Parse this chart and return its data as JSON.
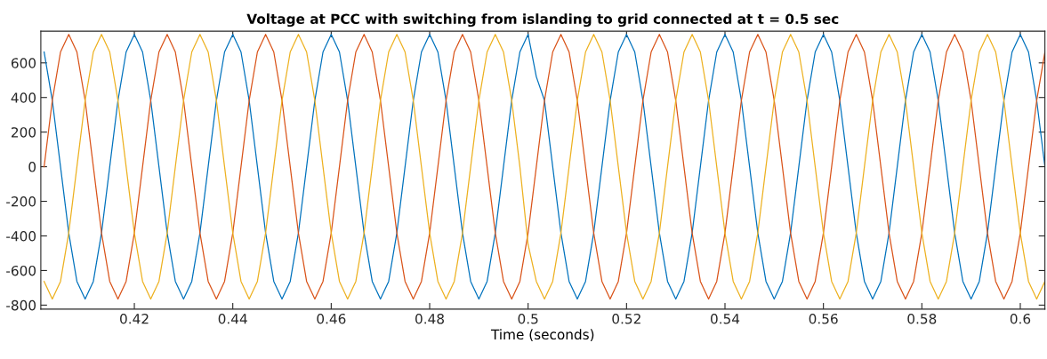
{
  "chart_data": {
    "type": "line",
    "title": "Voltage at PCC with switching from islanding to grid connected at t = 0.5 sec",
    "xlabel": "Time (seconds)",
    "x": [
      0.40167,
      0.40333,
      0.405,
      0.40667,
      0.40833,
      0.41,
      0.41167,
      0.41333,
      0.415,
      0.41667,
      0.41833,
      0.42,
      0.42167,
      0.42333,
      0.425,
      0.42667,
      0.42833,
      0.43,
      0.43167,
      0.43333,
      0.435,
      0.43667,
      0.43833,
      0.44,
      0.44167,
      0.44333,
      0.445,
      0.44667,
      0.44833,
      0.45,
      0.45167,
      0.45333,
      0.455,
      0.45667,
      0.45833,
      0.46,
      0.46167,
      0.46333,
      0.465,
      0.46667,
      0.46833,
      0.47,
      0.47167,
      0.47333,
      0.475,
      0.47667,
      0.47833,
      0.48,
      0.48167,
      0.48333,
      0.485,
      0.48667,
      0.48833,
      0.49,
      0.49167,
      0.49333,
      0.495,
      0.49667,
      0.49833,
      0.5,
      0.50167,
      0.50333,
      0.505,
      0.50667,
      0.50833,
      0.51,
      0.51167,
      0.51333,
      0.515,
      0.51667,
      0.51833,
      0.52,
      0.52167,
      0.52333,
      0.525,
      0.52667,
      0.52833,
      0.53,
      0.53167,
      0.53333,
      0.535,
      0.53667,
      0.53833,
      0.54,
      0.54167,
      0.54333,
      0.545,
      0.54667,
      0.54833,
      0.55,
      0.55167,
      0.55333,
      0.555,
      0.55667,
      0.55833,
      0.56,
      0.56167,
      0.56333,
      0.565,
      0.56667,
      0.56833,
      0.57,
      0.57167,
      0.57333,
      0.575,
      0.57667,
      0.57833,
      0.58,
      0.58167,
      0.58333,
      0.585,
      0.58667,
      0.58833,
      0.59,
      0.59167,
      0.59333,
      0.595,
      0.59667,
      0.59833,
      0.6,
      0.60167,
      0.60333,
      0.605
    ],
    "series": [
      {
        "color": "#0072bd",
        "values": [
          663,
          383,
          0,
          -383,
          -663,
          -765,
          -663,
          -383,
          0,
          383,
          663,
          765,
          663,
          383,
          0,
          -383,
          -663,
          -765,
          -663,
          -383,
          0,
          383,
          663,
          765,
          663,
          383,
          0,
          -383,
          -663,
          -765,
          -663,
          -383,
          0,
          383,
          663,
          765,
          663,
          383,
          0,
          -383,
          -663,
          -765,
          -663,
          -383,
          0,
          383,
          663,
          765,
          663,
          383,
          0,
          -383,
          -663,
          -765,
          -663,
          -383,
          0,
          383,
          663,
          765,
          520,
          383,
          0,
          -383,
          -663,
          -765,
          -663,
          -383,
          0,
          383,
          663,
          765,
          663,
          383,
          0,
          -383,
          -663,
          -765,
          -663,
          -383,
          0,
          383,
          663,
          765,
          663,
          383,
          0,
          -383,
          -663,
          -765,
          -663,
          -383,
          0,
          383,
          663,
          765,
          663,
          383,
          0,
          -383,
          -663,
          -765,
          -663,
          -383,
          0,
          383,
          663,
          765,
          663,
          383,
          0,
          -383,
          -663,
          -765,
          -663,
          -383,
          0,
          383,
          663,
          765,
          663,
          383,
          0
        ]
      },
      {
        "color": "#d95319",
        "values": [
          0,
          383,
          663,
          765,
          663,
          383,
          0,
          -383,
          -663,
          -765,
          -663,
          -383,
          0,
          383,
          663,
          765,
          663,
          383,
          0,
          -383,
          -663,
          -765,
          -663,
          -383,
          0,
          383,
          663,
          765,
          663,
          383,
          0,
          -383,
          -663,
          -765,
          -663,
          -383,
          0,
          383,
          663,
          765,
          663,
          383,
          0,
          -383,
          -663,
          -765,
          -663,
          -383,
          0,
          383,
          663,
          765,
          663,
          383,
          0,
          -383,
          -663,
          -765,
          -663,
          -383,
          0,
          383,
          663,
          765,
          663,
          383,
          0,
          -383,
          -663,
          -765,
          -663,
          -383,
          0,
          383,
          663,
          765,
          663,
          383,
          0,
          -383,
          -663,
          -765,
          -663,
          -383,
          0,
          383,
          663,
          765,
          663,
          383,
          0,
          -383,
          -663,
          -765,
          -663,
          -383,
          0,
          383,
          663,
          765,
          663,
          383,
          0,
          -383,
          -663,
          -765,
          -663,
          -383,
          0,
          383,
          663,
          765,
          663,
          383,
          0,
          -383,
          -663,
          -765,
          -663,
          -383,
          0,
          383,
          663
        ]
      },
      {
        "color": "#edb120",
        "values": [
          -663,
          -765,
          -663,
          -383,
          0,
          383,
          663,
          765,
          663,
          383,
          0,
          -383,
          -663,
          -765,
          -663,
          -383,
          0,
          383,
          663,
          765,
          663,
          383,
          0,
          -383,
          -663,
          -765,
          -663,
          -383,
          0,
          383,
          663,
          765,
          663,
          383,
          0,
          -383,
          -663,
          -765,
          -663,
          -383,
          0,
          383,
          663,
          765,
          663,
          383,
          0,
          -383,
          -663,
          -765,
          -663,
          -383,
          0,
          383,
          663,
          765,
          663,
          383,
          0,
          -450,
          -663,
          -765,
          -663,
          -383,
          0,
          383,
          663,
          765,
          663,
          383,
          0,
          -383,
          -663,
          -765,
          -663,
          -383,
          0,
          383,
          663,
          765,
          663,
          383,
          0,
          -383,
          -663,
          -765,
          -663,
          -383,
          0,
          383,
          663,
          765,
          663,
          383,
          0,
          -383,
          -663,
          -765,
          -663,
          -383,
          0,
          383,
          663,
          765,
          663,
          383,
          0,
          -383,
          -663,
          -765,
          -663,
          -383,
          0,
          383,
          663,
          765,
          663,
          383,
          0,
          -383,
          -663,
          -765,
          -663
        ]
      }
    ],
    "xlim": [
      0.401,
      0.605
    ],
    "ylim": [
      -823,
      783
    ],
    "xticks": [
      0.42,
      0.44,
      0.46,
      0.48,
      0.5,
      0.52,
      0.54,
      0.56,
      0.58,
      0.6
    ],
    "yticks": [
      -800,
      -600,
      -400,
      -200,
      0,
      200,
      400,
      600
    ],
    "grid": false,
    "legend": false,
    "marker": "none",
    "line_style": "solid"
  }
}
